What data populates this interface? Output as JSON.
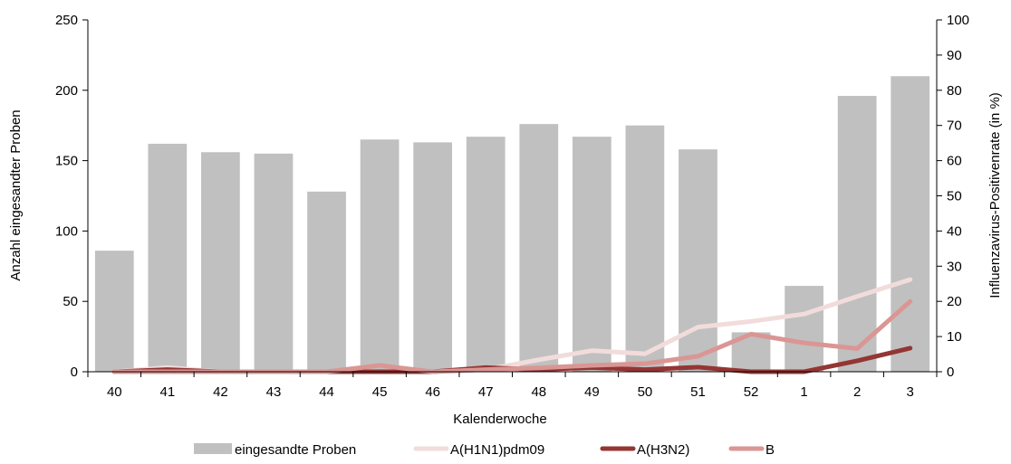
{
  "chart_data": {
    "type": "bar",
    "categories": [
      "40",
      "41",
      "42",
      "43",
      "44",
      "45",
      "46",
      "47",
      "48",
      "49",
      "50",
      "51",
      "52",
      "1",
      "2",
      "3"
    ],
    "xlabel": "Kalenderwoche",
    "ylabel": "Anzahl eingesandter Proben",
    "y2label": "Influenzavirus-Positivenrate (in %)",
    "ylim": [
      0,
      250
    ],
    "y2lim": [
      0,
      100
    ],
    "yticks": [
      0,
      50,
      100,
      150,
      200,
      250
    ],
    "y2ticks": [
      0,
      10,
      20,
      30,
      40,
      50,
      60,
      70,
      80,
      90,
      100
    ],
    "grid": false,
    "legend_position": "bottom",
    "bar_series": {
      "name": "eingesandte Proben",
      "axis": "left",
      "color": "#c0c0c0",
      "values": [
        86,
        162,
        156,
        155,
        128,
        165,
        163,
        167,
        176,
        167,
        175,
        158,
        28,
        61,
        196,
        210
      ]
    },
    "line_series": [
      {
        "name": "A(H1N1)pdm09",
        "axis": "right",
        "color": "#f2dcdb",
        "values": [
          0,
          1.2,
          0,
          0,
          0,
          0,
          0,
          0.6,
          3.4,
          6,
          5.1,
          12.7,
          14.3,
          16.4,
          21.4,
          26.2
        ]
      },
      {
        "name": "A(H3N2)",
        "axis": "right",
        "color": "#943634",
        "values": [
          0,
          0.6,
          0,
          0,
          0,
          0,
          0,
          1.2,
          0.6,
          1.2,
          0.6,
          1.3,
          0,
          0,
          3.1,
          6.7
        ]
      },
      {
        "name": "B",
        "axis": "right",
        "color": "#da9694",
        "values": [
          0,
          0,
          0,
          0,
          0,
          1.8,
          0,
          0.6,
          1.1,
          1.8,
          2.3,
          4.4,
          10.7,
          8.2,
          6.6,
          20
        ]
      }
    ]
  }
}
